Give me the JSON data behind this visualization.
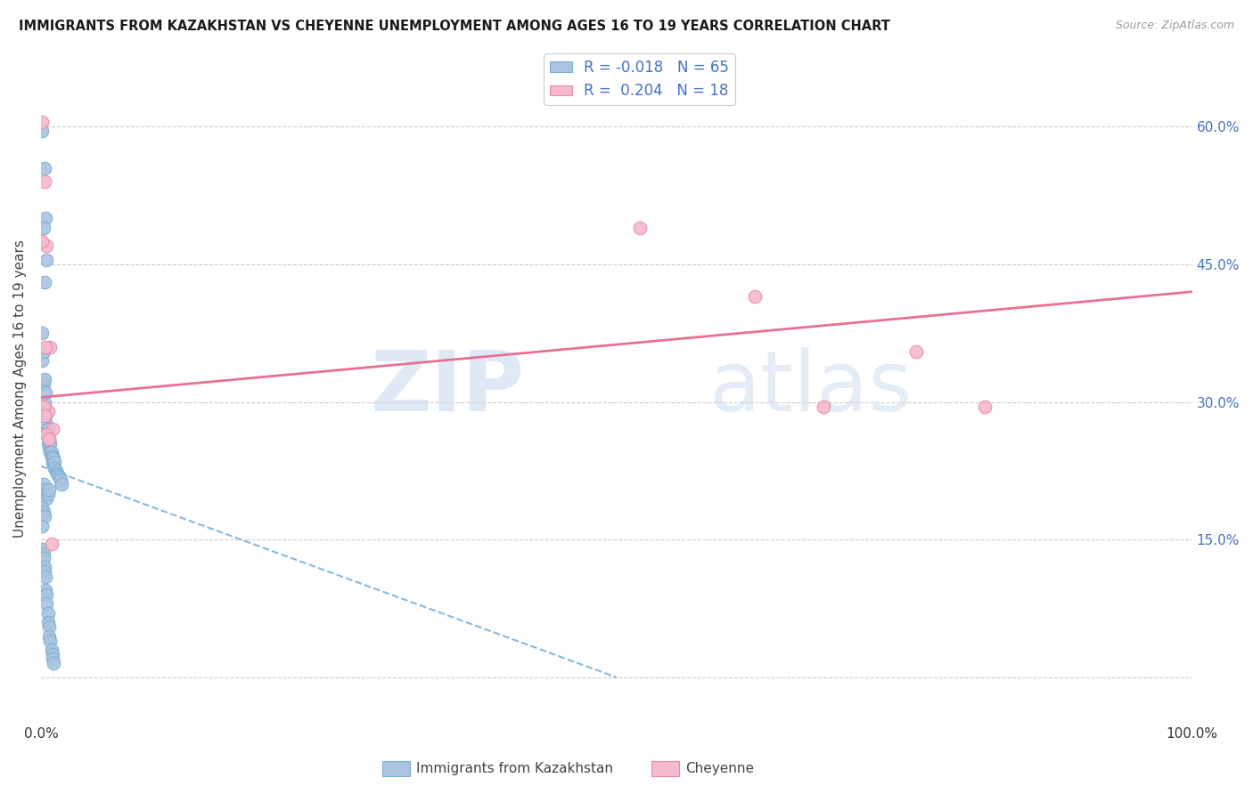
{
  "title": "IMMIGRANTS FROM KAZAKHSTAN VS CHEYENNE UNEMPLOYMENT AMONG AGES 16 TO 19 YEARS CORRELATION CHART",
  "source": "Source: ZipAtlas.com",
  "ylabel": "Unemployment Among Ages 16 to 19 years",
  "yticks": [
    0.0,
    0.15,
    0.3,
    0.45,
    0.6
  ],
  "ytick_labels": [
    "",
    "15.0%",
    "30.0%",
    "45.0%",
    "60.0%"
  ],
  "xlim": [
    0.0,
    1.0
  ],
  "ylim": [
    -0.05,
    0.68
  ],
  "legend_r1": "R = -0.018",
  "legend_n1": "N = 65",
  "legend_r2": "R =  0.204",
  "legend_n2": "N = 18",
  "blue_color": "#aac4e0",
  "blue_edge_color": "#7aafd4",
  "pink_color": "#f5bace",
  "pink_edge_color": "#e88aa8",
  "trend_blue_color": "#88b8de",
  "trend_pink_color": "#e87090",
  "scatter_size": 110,
  "blue_dots_x": [
    0.001,
    0.001,
    0.002,
    0.002,
    0.003,
    0.003,
    0.004,
    0.004,
    0.005,
    0.005,
    0.006,
    0.006,
    0.007,
    0.007,
    0.008,
    0.008,
    0.009,
    0.009,
    0.01,
    0.01,
    0.011,
    0.011,
    0.012,
    0.012,
    0.013,
    0.014,
    0.015,
    0.016,
    0.017,
    0.018,
    0.002,
    0.003,
    0.004,
    0.005,
    0.006,
    0.007,
    0.001,
    0.002,
    0.003,
    0.001,
    0.001,
    0.002,
    0.002,
    0.003,
    0.003,
    0.004,
    0.004,
    0.005,
    0.005,
    0.006,
    0.006,
    0.007,
    0.007,
    0.008,
    0.009,
    0.01,
    0.01,
    0.011,
    0.003,
    0.004,
    0.005,
    0.001,
    0.002,
    0.003,
    0.006
  ],
  "blue_dots_y": [
    0.375,
    0.345,
    0.355,
    0.32,
    0.325,
    0.3,
    0.31,
    0.285,
    0.29,
    0.275,
    0.27,
    0.255,
    0.26,
    0.25,
    0.255,
    0.245,
    0.245,
    0.24,
    0.24,
    0.235,
    0.238,
    0.232,
    0.235,
    0.228,
    0.225,
    0.222,
    0.22,
    0.218,
    0.215,
    0.21,
    0.21,
    0.205,
    0.2,
    0.195,
    0.2,
    0.205,
    0.185,
    0.18,
    0.175,
    0.165,
    0.14,
    0.135,
    0.13,
    0.12,
    0.115,
    0.11,
    0.095,
    0.09,
    0.08,
    0.07,
    0.06,
    0.055,
    0.045,
    0.04,
    0.03,
    0.025,
    0.02,
    0.015,
    0.555,
    0.5,
    0.455,
    0.595,
    0.49,
    0.43,
    0.27
  ],
  "pink_dots_x": [
    0.001,
    0.003,
    0.005,
    0.008,
    0.001,
    0.004,
    0.006,
    0.01,
    0.002,
    0.003,
    0.005,
    0.007,
    0.009,
    0.52,
    0.62,
    0.68,
    0.76,
    0.82
  ],
  "pink_dots_y": [
    0.605,
    0.54,
    0.47,
    0.36,
    0.475,
    0.36,
    0.29,
    0.27,
    0.295,
    0.285,
    0.265,
    0.26,
    0.145,
    0.49,
    0.415,
    0.295,
    0.355,
    0.295
  ],
  "blue_trend_x": [
    0.0,
    0.5
  ],
  "blue_trend_y": [
    0.23,
    0.0
  ],
  "pink_trend_x": [
    0.0,
    1.0
  ],
  "pink_trend_y": [
    0.305,
    0.42
  ],
  "watermark_zip": "ZIP",
  "watermark_atlas": "atlas",
  "background_color": "#ffffff",
  "grid_color": "#cccccc"
}
